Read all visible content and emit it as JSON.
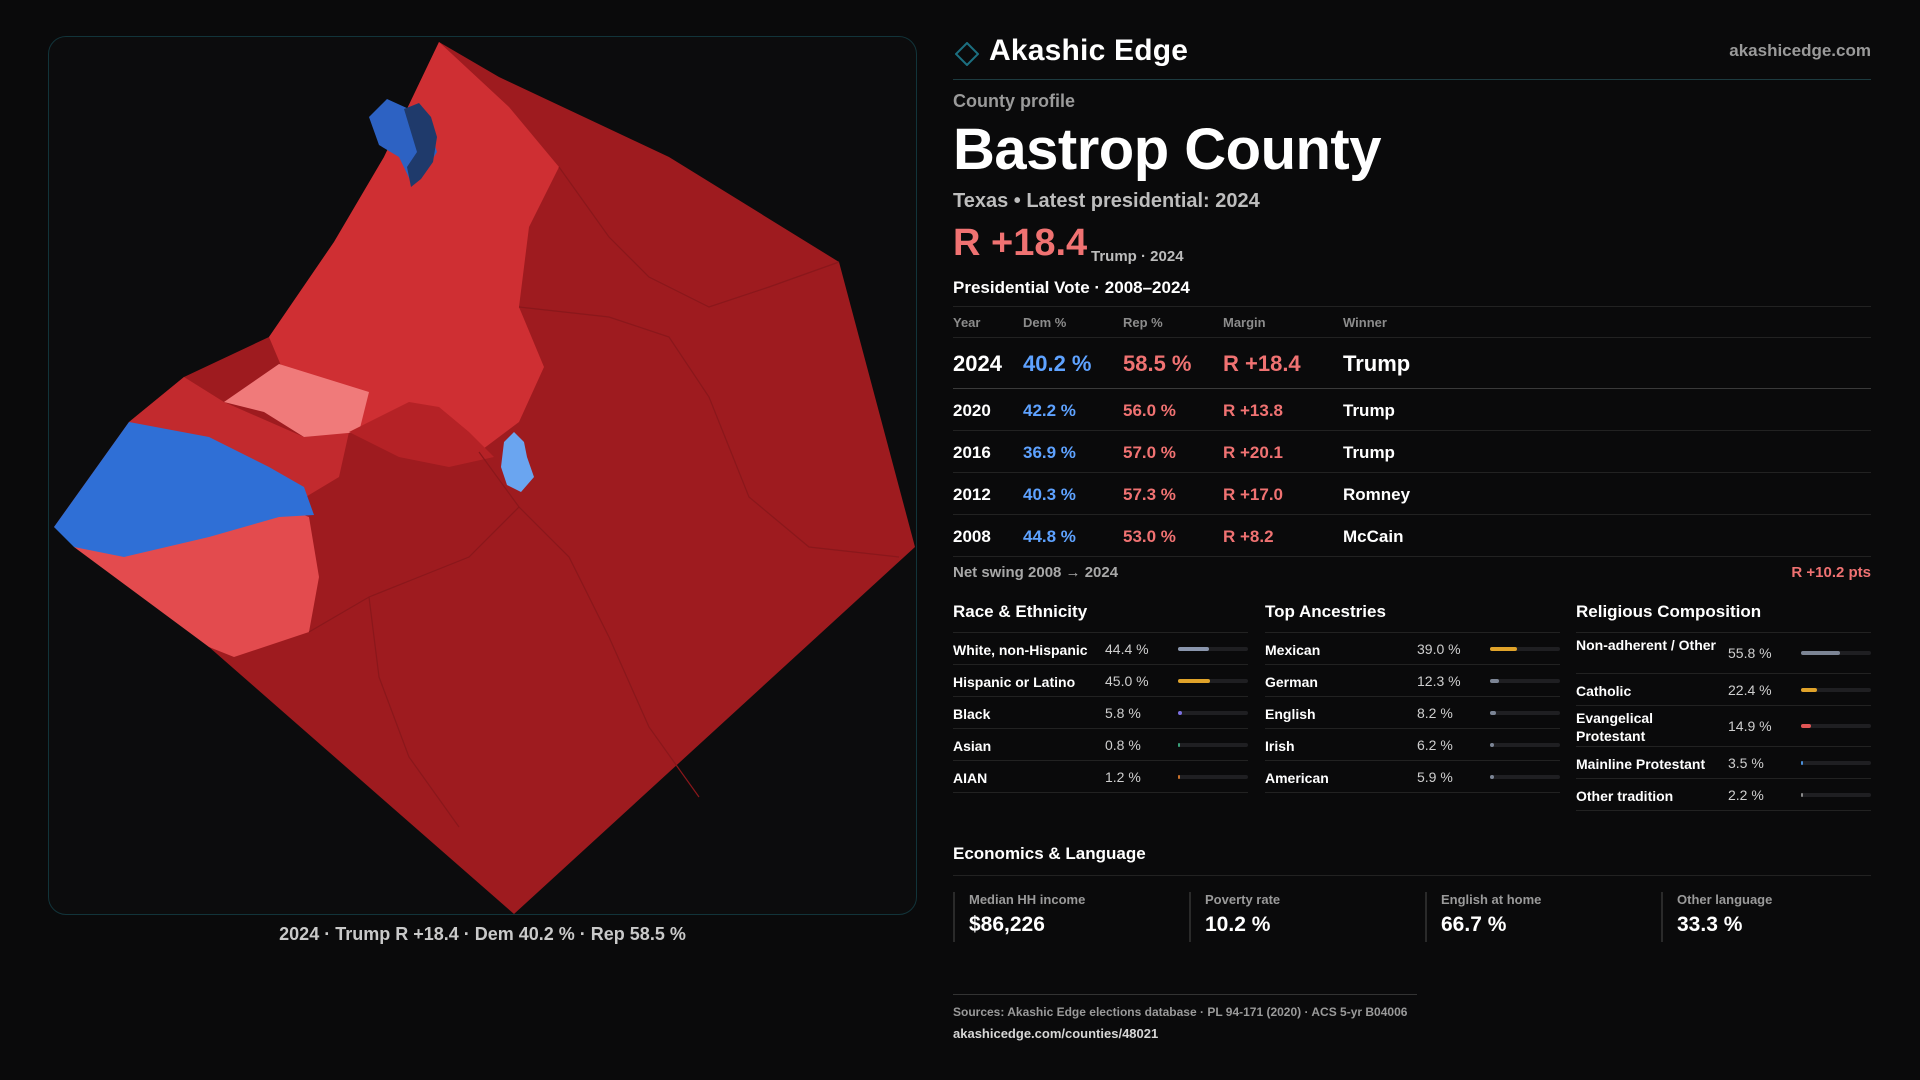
{
  "brand": {
    "name": "Akashic Edge",
    "url": "akashicedge.com",
    "accent": "#1c6f80"
  },
  "profile": {
    "eyebrow": "County profile",
    "county": "Bastrop County",
    "subtitle": "Texas • Latest presidential: 2024",
    "margin": "R +18.4",
    "margin_note": "Trump · 2024"
  },
  "map": {
    "caption": "2024 · Trump R +18.4 · Dem 40.2 % · Rep 58.5 %",
    "colors": {
      "dem_strong": "#2f6fd6",
      "dem_light": "#6aa5f0",
      "rep_strong": "#9e1b1f",
      "rep_mid": "#cf2f33",
      "rep_light": "#f07a7a"
    }
  },
  "vote_table": {
    "title": "Presidential Vote · 2008–2024",
    "headers": {
      "year": "Year",
      "dem": "Dem %",
      "rep": "Rep %",
      "margin": "Margin",
      "winner": "Winner"
    },
    "rows": [
      {
        "year": "2024",
        "dem": "40.2 %",
        "rep": "58.5 %",
        "margin": "R +18.4",
        "winner": "Trump"
      },
      {
        "year": "2020",
        "dem": "42.2 %",
        "rep": "56.0 %",
        "margin": "R +13.8",
        "winner": "Trump"
      },
      {
        "year": "2016",
        "dem": "36.9 %",
        "rep": "57.0 %",
        "margin": "R +20.1",
        "winner": "Trump"
      },
      {
        "year": "2012",
        "dem": "40.3 %",
        "rep": "57.3 %",
        "margin": "R +17.0",
        "winner": "Romney"
      },
      {
        "year": "2008",
        "dem": "44.8 %",
        "rep": "53.0 %",
        "margin": "R +8.2",
        "winner": "McCain"
      }
    ],
    "swing_label": "Net swing 2008 → 2024",
    "swing_value": "R +10.2 pts"
  },
  "race": {
    "title": "Race & Ethnicity",
    "items": [
      {
        "label": "White, non-Hispanic",
        "value": "44.4 %",
        "pct": 44.4,
        "color": "#8a96ad"
      },
      {
        "label": "Hispanic or Latino",
        "value": "45.0 %",
        "pct": 45.0,
        "color": "#e0a32a"
      },
      {
        "label": "Black",
        "value": "5.8 %",
        "pct": 5.8,
        "color": "#7b6fe0"
      },
      {
        "label": "Asian",
        "value": "0.8 %",
        "pct": 0.8,
        "color": "#3aa07a"
      },
      {
        "label": "AIAN",
        "value": "1.2 %",
        "pct": 1.2,
        "color": "#c9722b"
      }
    ]
  },
  "ancestry": {
    "title": "Top Ancestries",
    "items": [
      {
        "label": "Mexican",
        "value": "39.0 %",
        "pct": 39.0,
        "color": "#e0a32a"
      },
      {
        "label": "German",
        "value": "12.3 %",
        "pct": 12.3,
        "color": "#7c8595"
      },
      {
        "label": "English",
        "value": "8.2 %",
        "pct": 8.2,
        "color": "#7c8595"
      },
      {
        "label": "Irish",
        "value": "6.2 %",
        "pct": 6.2,
        "color": "#7c8595"
      },
      {
        "label": "American",
        "value": "5.9 %",
        "pct": 5.9,
        "color": "#7c8595"
      }
    ]
  },
  "religion": {
    "title": "Religious Composition",
    "items": [
      {
        "label": "Non-adherent / Other",
        "value": "55.8 %",
        "pct": 55.8,
        "color": "#7c8595",
        "tall": true
      },
      {
        "label": "Catholic",
        "value": "22.4 %",
        "pct": 22.4,
        "color": "#e0a32a",
        "tall": false
      },
      {
        "label": "Evangelical Protestant",
        "value": "14.9 %",
        "pct": 14.9,
        "color": "#e05555",
        "tall": true
      },
      {
        "label": "Mainline Protestant",
        "value": "3.5 %",
        "pct": 3.5,
        "color": "#4a8ed8",
        "tall": false
      },
      {
        "label": "Other tradition",
        "value": "2.2 %",
        "pct": 2.2,
        "color": "#8a8a8a",
        "tall": false
      }
    ]
  },
  "economics": {
    "title": "Economics & Language",
    "cards": [
      {
        "label": "Median HH income",
        "value": "$86,226"
      },
      {
        "label": "Poverty rate",
        "value": "10.2 %"
      },
      {
        "label": "English at home",
        "value": "66.7 %"
      },
      {
        "label": "Other language",
        "value": "33.3 %"
      }
    ]
  },
  "footer": {
    "sources": "Sources: Akashic Edge elections database · PL 94-171 (2020) · ACS 5-yr B04006",
    "url": "akashicedge.com/counties/48021"
  }
}
